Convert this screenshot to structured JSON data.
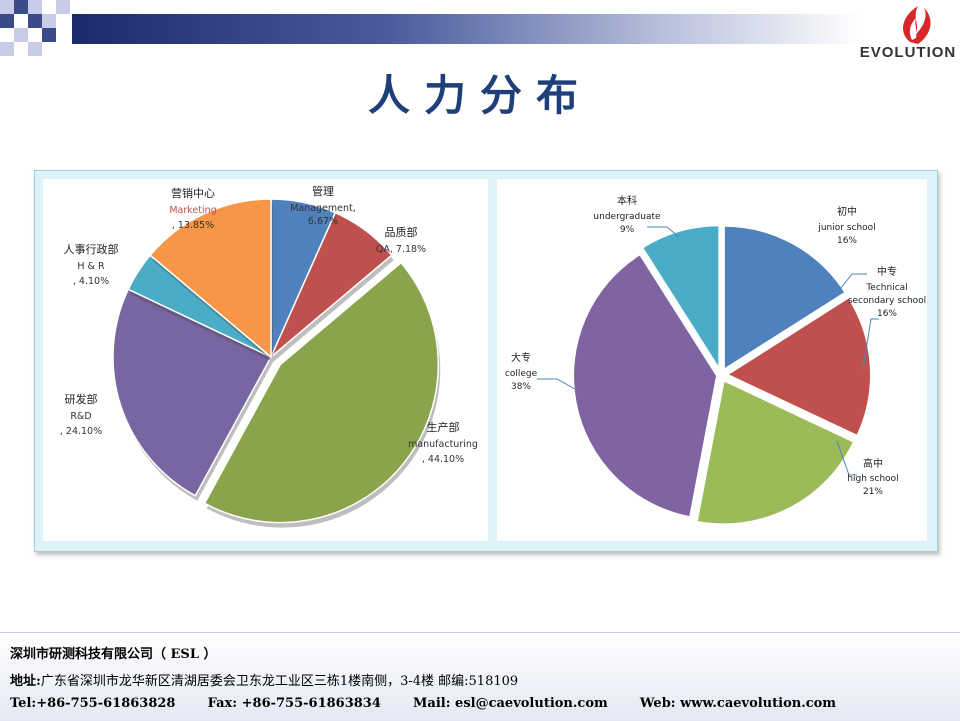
{
  "header": {
    "logo_text": "EVOLUTION",
    "title": "人力分布"
  },
  "chart_data": [
    {
      "type": "pie",
      "title": "",
      "slices": [
        {
          "label_zh": "管理",
          "label_en": "Management,",
          "value": 6.67,
          "value_text": "6.67%",
          "color": "#4f81bd"
        },
        {
          "label_zh": "品质部",
          "label_en": "QA, 7.18%",
          "value": 7.18,
          "value_text": "",
          "color": "#c0504d"
        },
        {
          "label_zh": "生产部",
          "label_en": "manufacturing",
          "value": 44.1,
          "value_text": ", 44.10%",
          "color": "#8aa44c"
        },
        {
          "label_zh": "研发部",
          "label_en": "R&D",
          "value": 24.1,
          "value_text": ", 24.10%",
          "color": "#7a65a3"
        },
        {
          "label_zh": "人事行政部",
          "label_en": "H & R",
          "value": 4.1,
          "value_text": ", 4.10%",
          "color": "#4bacc6"
        },
        {
          "label_zh": "营销中心",
          "label_en": "Marketing",
          "value": 13.85,
          "value_text": ", 13.85%",
          "color": "#f79646"
        }
      ]
    },
    {
      "type": "pie",
      "title": "",
      "slices": [
        {
          "label_zh": "初中",
          "label_en": [
            "junior school"
          ],
          "value": 16,
          "value_text": "16%",
          "color": "#4f81bd"
        },
        {
          "label_zh": "中专",
          "label_en": [
            "Technical",
            "secondary school"
          ],
          "value": 16,
          "value_text": "16%",
          "color": "#c0504d"
        },
        {
          "label_zh": "高中",
          "label_en": [
            "high school"
          ],
          "value": 21,
          "value_text": "21%",
          "color": "#9bbb59"
        },
        {
          "label_zh": "大专",
          "label_en": [
            "college"
          ],
          "value": 38,
          "value_text": "38%",
          "color": "#8064a2"
        },
        {
          "label_zh": "本科",
          "label_en": [
            "undergraduate"
          ],
          "value": 9,
          "value_text": "9%",
          "color": "#4bacc6"
        }
      ]
    }
  ],
  "footer": {
    "company": "深圳市研测科技有限公司（ ESL ）",
    "address_label": "地址:",
    "address": "广东省深圳市龙华新区清湖居委会卫东龙工业区三栋1楼南侧，3-4楼 邮编:518109",
    "tel": "Tel:+86-755-61863828",
    "fax": "Fax: +86-755-61863834",
    "mail": "Mail: esl@caevolution.com",
    "web": "Web: www.caevolution.com"
  }
}
